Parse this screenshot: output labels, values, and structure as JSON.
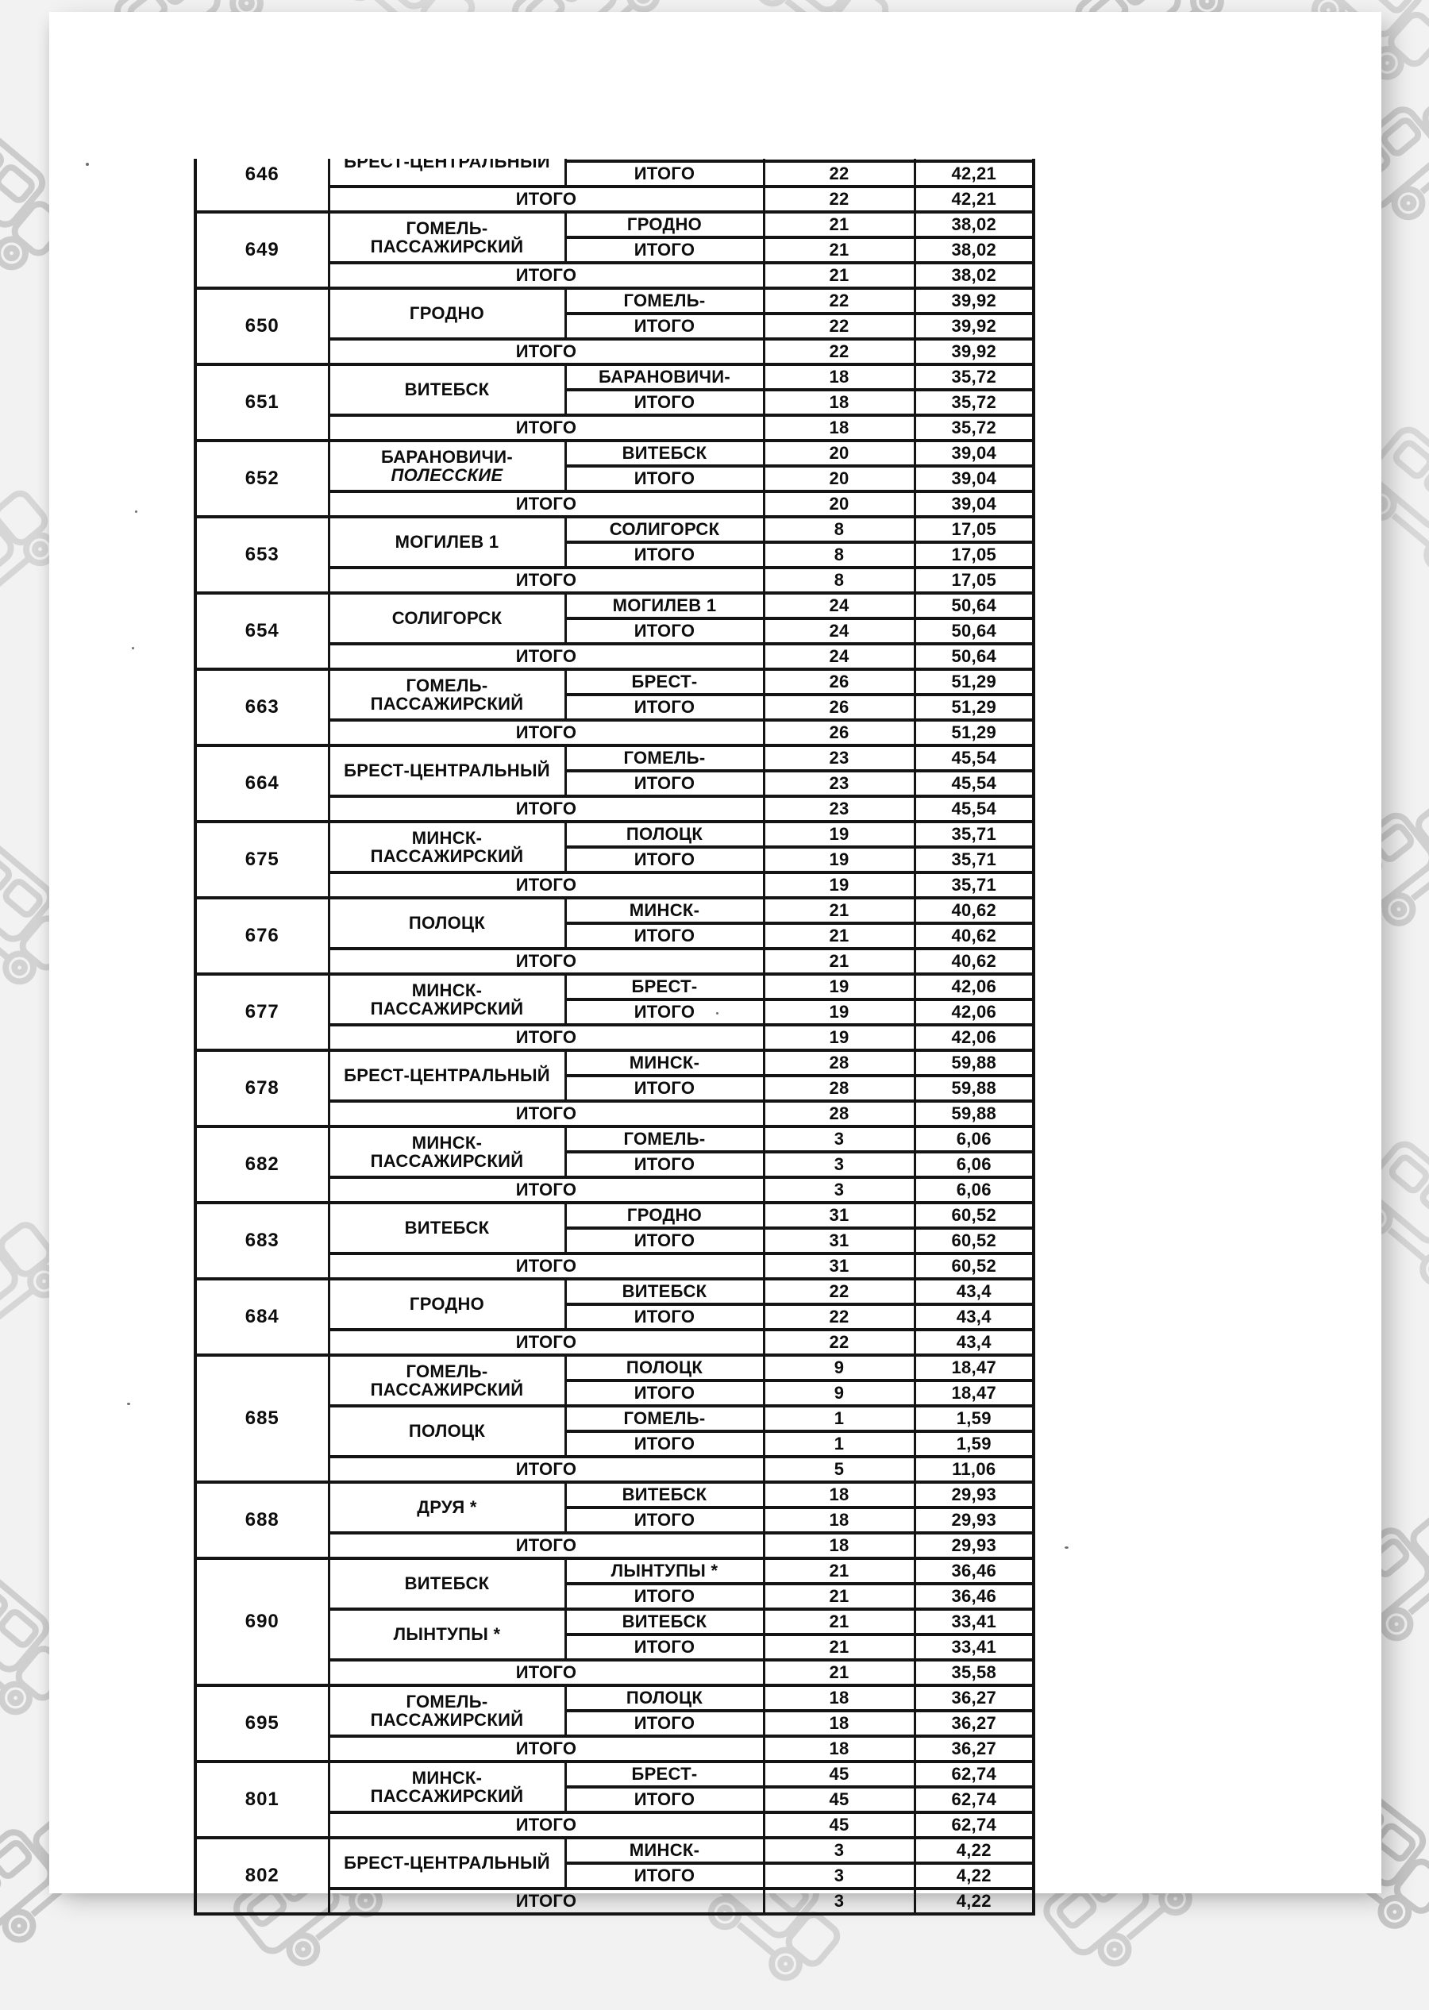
{
  "colors": {
    "table_border": "#141414",
    "page_background": "#ffffff",
    "canvas_background": "#f2f2f2",
    "pattern_gray": "#d6d6d6"
  },
  "table": {
    "total_row_label": "ИТОГО",
    "blocks": [
      {
        "train": "646",
        "clipped": true,
        "origins": [
          {
            "lines": [
              "БРЕСТ-ЦЕНТРАЛЬНЫЙ"
            ],
            "rows": [
              {
                "dest": "",
                "count": "",
                "value": "",
                "phantom": true
              },
              {
                "dest": "ИТОГО",
                "count": "22",
                "value": "42,21"
              }
            ]
          }
        ],
        "total": {
          "label": "ИТОГО",
          "count": "22",
          "value": "42,21"
        }
      },
      {
        "train": "649",
        "origins": [
          {
            "lines": [
              "ГОМЕЛЬ-",
              "ПАССАЖИРСКИЙ"
            ],
            "rows": [
              {
                "dest": "ГРОДНО",
                "count": "21",
                "value": "38,02"
              },
              {
                "dest": "ИТОГО",
                "count": "21",
                "value": "38,02"
              }
            ]
          }
        ],
        "total": {
          "label": "ИТОГО",
          "count": "21",
          "value": "38,02"
        }
      },
      {
        "train": "650",
        "origins": [
          {
            "lines": [
              "ГРОДНО"
            ],
            "rows": [
              {
                "dest": "ГОМЕЛЬ-",
                "count": "22",
                "value": "39,92"
              },
              {
                "dest": "ИТОГО",
                "count": "22",
                "value": "39,92"
              }
            ]
          }
        ],
        "total": {
          "label": "ИТОГО",
          "count": "22",
          "value": "39,92"
        }
      },
      {
        "train": "651",
        "origins": [
          {
            "lines": [
              "ВИТЕБСК"
            ],
            "rows": [
              {
                "dest": "БАРАНОВИЧИ-",
                "count": "18",
                "value": "35,72"
              },
              {
                "dest": "ИТОГО",
                "count": "18",
                "value": "35,72"
              }
            ]
          }
        ],
        "total": {
          "label": "ИТОГО",
          "count": "18",
          "value": "35,72"
        }
      },
      {
        "train": "652",
        "origins": [
          {
            "lines": [
              "БАРАНОВИЧИ-",
              "ПОЛЕССКИЕ"
            ],
            "italic_line": 1,
            "rows": [
              {
                "dest": "ВИТЕБСК",
                "count": "20",
                "value": "39,04"
              },
              {
                "dest": "ИТОГО",
                "count": "20",
                "value": "39,04"
              }
            ]
          }
        ],
        "total": {
          "label": "ИТОГО",
          "count": "20",
          "value": "39,04"
        }
      },
      {
        "train": "653",
        "origins": [
          {
            "lines": [
              "МОГИЛЕВ 1"
            ],
            "rows": [
              {
                "dest": "СОЛИГОРСК",
                "count": "8",
                "value": "17,05"
              },
              {
                "dest": "ИТОГО",
                "count": "8",
                "value": "17,05"
              }
            ]
          }
        ],
        "total": {
          "label": "ИТОГО",
          "count": "8",
          "value": "17,05"
        }
      },
      {
        "train": "654",
        "origins": [
          {
            "lines": [
              "СОЛИГОРСК"
            ],
            "rows": [
              {
                "dest": "МОГИЛЕВ 1",
                "count": "24",
                "value": "50,64"
              },
              {
                "dest": "ИТОГО",
                "count": "24",
                "value": "50,64"
              }
            ]
          }
        ],
        "total": {
          "label": "ИТОГО",
          "count": "24",
          "value": "50,64"
        }
      },
      {
        "train": "663",
        "origins": [
          {
            "lines": [
              "ГОМЕЛЬ-",
              "ПАССАЖИРСКИЙ"
            ],
            "rows": [
              {
                "dest": "БРЕСТ-",
                "count": "26",
                "value": "51,29"
              },
              {
                "dest": "ИТОГО",
                "count": "26",
                "value": "51,29"
              }
            ]
          }
        ],
        "total": {
          "label": "ИТОГО",
          "count": "26",
          "value": "51,29"
        }
      },
      {
        "train": "664",
        "origins": [
          {
            "lines": [
              "БРЕСТ-ЦЕНТРАЛЬНЫЙ"
            ],
            "rows": [
              {
                "dest": "ГОМЕЛЬ-",
                "count": "23",
                "value": "45,54"
              },
              {
                "dest": "ИТОГО",
                "count": "23",
                "value": "45,54"
              }
            ]
          }
        ],
        "total": {
          "label": "ИТОГО",
          "count": "23",
          "value": "45,54"
        }
      },
      {
        "train": "675",
        "origins": [
          {
            "lines": [
              "МИНСК-",
              "ПАССАЖИРСКИЙ"
            ],
            "rows": [
              {
                "dest": "ПОЛОЦК",
                "count": "19",
                "value": "35,71"
              },
              {
                "dest": "ИТОГО",
                "count": "19",
                "value": "35,71"
              }
            ]
          }
        ],
        "total": {
          "label": "ИТОГО",
          "count": "19",
          "value": "35,71"
        }
      },
      {
        "train": "676",
        "origins": [
          {
            "lines": [
              "ПОЛОЦК"
            ],
            "rows": [
              {
                "dest": "МИНСК-",
                "count": "21",
                "value": "40,62"
              },
              {
                "dest": "ИТОГО",
                "count": "21",
                "value": "40,62"
              }
            ]
          }
        ],
        "total": {
          "label": "ИТОГО",
          "count": "21",
          "value": "40,62"
        }
      },
      {
        "train": "677",
        "origins": [
          {
            "lines": [
              "МИНСК-",
              "ПАССАЖИРСКИЙ"
            ],
            "rows": [
              {
                "dest": "БРЕСТ-",
                "count": "19",
                "value": "42,06"
              },
              {
                "dest": "ИТОГО",
                "count": "19",
                "value": "42,06"
              }
            ]
          }
        ],
        "total": {
          "label": "ИТОГО",
          "count": "19",
          "value": "42,06"
        }
      },
      {
        "train": "678",
        "origins": [
          {
            "lines": [
              "БРЕСТ-ЦЕНТРАЛЬНЫЙ"
            ],
            "rows": [
              {
                "dest": "МИНСК-",
                "count": "28",
                "value": "59,88"
              },
              {
                "dest": "ИТОГО",
                "count": "28",
                "value": "59,88"
              }
            ]
          }
        ],
        "total": {
          "label": "ИТОГО",
          "count": "28",
          "value": "59,88"
        }
      },
      {
        "train": "682",
        "origins": [
          {
            "lines": [
              "МИНСК-",
              "ПАССАЖИРСКИЙ"
            ],
            "rows": [
              {
                "dest": "ГОМЕЛЬ-",
                "count": "3",
                "value": "6,06"
              },
              {
                "dest": "ИТОГО",
                "count": "3",
                "value": "6,06"
              }
            ]
          }
        ],
        "total": {
          "label": "ИТОГО",
          "count": "3",
          "value": "6,06"
        }
      },
      {
        "train": "683",
        "origins": [
          {
            "lines": [
              "ВИТЕБСК"
            ],
            "rows": [
              {
                "dest": "ГРОДНО",
                "count": "31",
                "value": "60,52"
              },
              {
                "dest": "ИТОГО",
                "count": "31",
                "value": "60,52"
              }
            ]
          }
        ],
        "total": {
          "label": "ИТОГО",
          "count": "31",
          "value": "60,52"
        }
      },
      {
        "train": "684",
        "origins": [
          {
            "lines": [
              "ГРОДНО"
            ],
            "rows": [
              {
                "dest": "ВИТЕБСК",
                "count": "22",
                "value": "43,4"
              },
              {
                "dest": "ИТОГО",
                "count": "22",
                "value": "43,4"
              }
            ]
          }
        ],
        "total": {
          "label": "ИТОГО",
          "count": "22",
          "value": "43,4"
        }
      },
      {
        "train": "685",
        "origins": [
          {
            "lines": [
              "ГОМЕЛЬ-",
              "ПАССАЖИРСКИЙ"
            ],
            "rows": [
              {
                "dest": "ПОЛОЦК",
                "count": "9",
                "value": "18,47"
              },
              {
                "dest": "ИТОГО",
                "count": "9",
                "value": "18,47"
              }
            ]
          },
          {
            "lines": [
              "ПОЛОЦК"
            ],
            "rows": [
              {
                "dest": "ГОМЕЛЬ-",
                "count": "1",
                "value": "1,59"
              },
              {
                "dest": "ИТОГО",
                "count": "1",
                "value": "1,59"
              }
            ]
          }
        ],
        "total": {
          "label": "ИТОГО",
          "count": "5",
          "value": "11,06"
        }
      },
      {
        "train": "688",
        "origins": [
          {
            "lines": [
              "ДРУЯ *"
            ],
            "rows": [
              {
                "dest": "ВИТЕБСК",
                "count": "18",
                "value": "29,93"
              },
              {
                "dest": "ИТОГО",
                "count": "18",
                "value": "29,93"
              }
            ]
          }
        ],
        "total": {
          "label": "ИТОГО",
          "count": "18",
          "value": "29,93"
        }
      },
      {
        "train": "690",
        "origins": [
          {
            "lines": [
              "ВИТЕБСК"
            ],
            "rows": [
              {
                "dest": "ЛЫНТУПЫ *",
                "count": "21",
                "value": "36,46"
              },
              {
                "dest": "ИТОГО",
                "count": "21",
                "value": "36,46"
              }
            ]
          },
          {
            "lines": [
              "ЛЫНТУПЫ *"
            ],
            "rows": [
              {
                "dest": "ВИТЕБСК",
                "count": "21",
                "value": "33,41"
              },
              {
                "dest": "ИТОГО",
                "count": "21",
                "value": "33,41"
              }
            ]
          }
        ],
        "total": {
          "label": "ИТОГО",
          "count": "21",
          "value": "35,58"
        }
      },
      {
        "train": "695",
        "origins": [
          {
            "lines": [
              "ГОМЕЛЬ-",
              "ПАССАЖИРСКИЙ"
            ],
            "rows": [
              {
                "dest": "ПОЛОЦК",
                "count": "18",
                "value": "36,27"
              },
              {
                "dest": "ИТОГО",
                "count": "18",
                "value": "36,27"
              }
            ]
          }
        ],
        "total": {
          "label": "ИТОГО",
          "count": "18",
          "value": "36,27"
        }
      },
      {
        "train": "801",
        "origins": [
          {
            "lines": [
              "МИНСК-",
              "ПАССАЖИРСКИЙ"
            ],
            "rows": [
              {
                "dest": "БРЕСТ-",
                "count": "45",
                "value": "62,74"
              },
              {
                "dest": "ИТОГО",
                "count": "45",
                "value": "62,74"
              }
            ]
          }
        ],
        "total": {
          "label": "ИТОГО",
          "count": "45",
          "value": "62,74"
        }
      },
      {
        "train": "802",
        "origins": [
          {
            "lines": [
              "БРЕСТ-ЦЕНТРАЛЬНЫЙ"
            ],
            "rows": [
              {
                "dest": "МИНСК-",
                "count": "3",
                "value": "4,22"
              },
              {
                "dest": "ИТОГО",
                "count": "3",
                "value": "4,22"
              }
            ]
          }
        ],
        "total": {
          "label": "ИТОГО",
          "count": "3",
          "value": "4,22"
        }
      }
    ]
  }
}
